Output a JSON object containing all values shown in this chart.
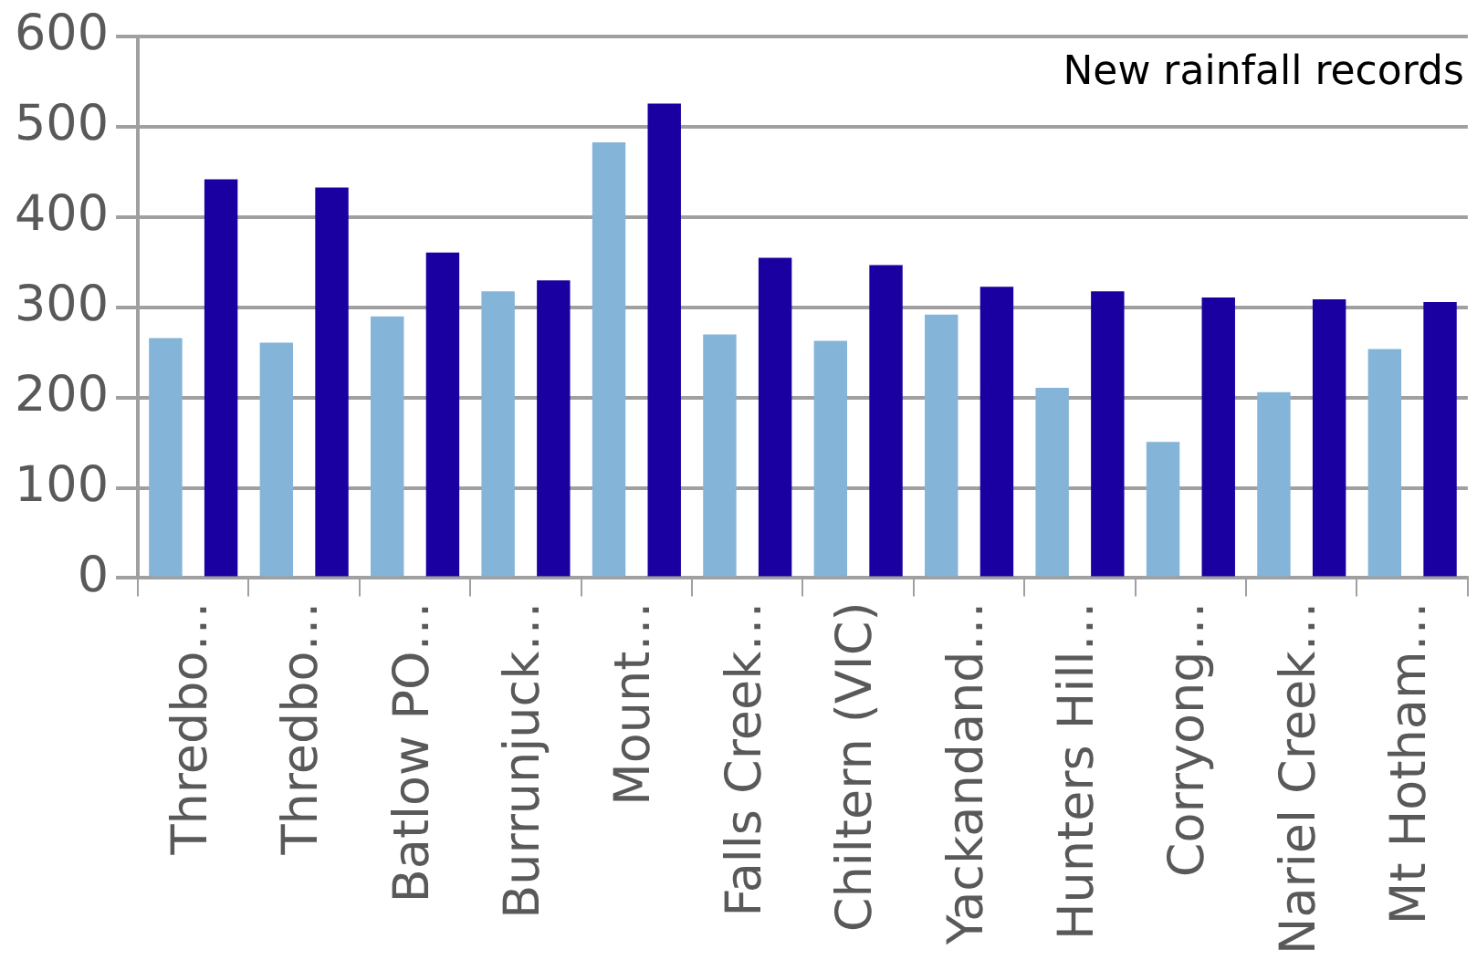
{
  "chart_data": {
    "type": "bar",
    "categories": [
      "Thredbo…",
      "Thredbo…",
      "Batlow PO…",
      "Burrunjuck…",
      "Mount…",
      "Falls Creek…",
      "Chiltern (VIC)",
      "Yackandand…",
      "Hunters Hill…",
      "Corryong…",
      "Nariel Creek…",
      "Mt Hotham…"
    ],
    "series": [
      {
        "color": "#84b4d8",
        "values": [
          266,
          261,
          290,
          318,
          483,
          270,
          263,
          292,
          211,
          151,
          206,
          254
        ]
      },
      {
        "color": "#1a00a0",
        "values": [
          442,
          433,
          361,
          330,
          526,
          355,
          347,
          323,
          318,
          311,
          309,
          306
        ]
      }
    ],
    "ylim": [
      0,
      600
    ],
    "yticks": [
      0,
      100,
      200,
      300,
      400,
      500,
      600
    ],
    "grid": "y",
    "legend": false,
    "annotations": [
      "New rainfall records"
    ]
  }
}
